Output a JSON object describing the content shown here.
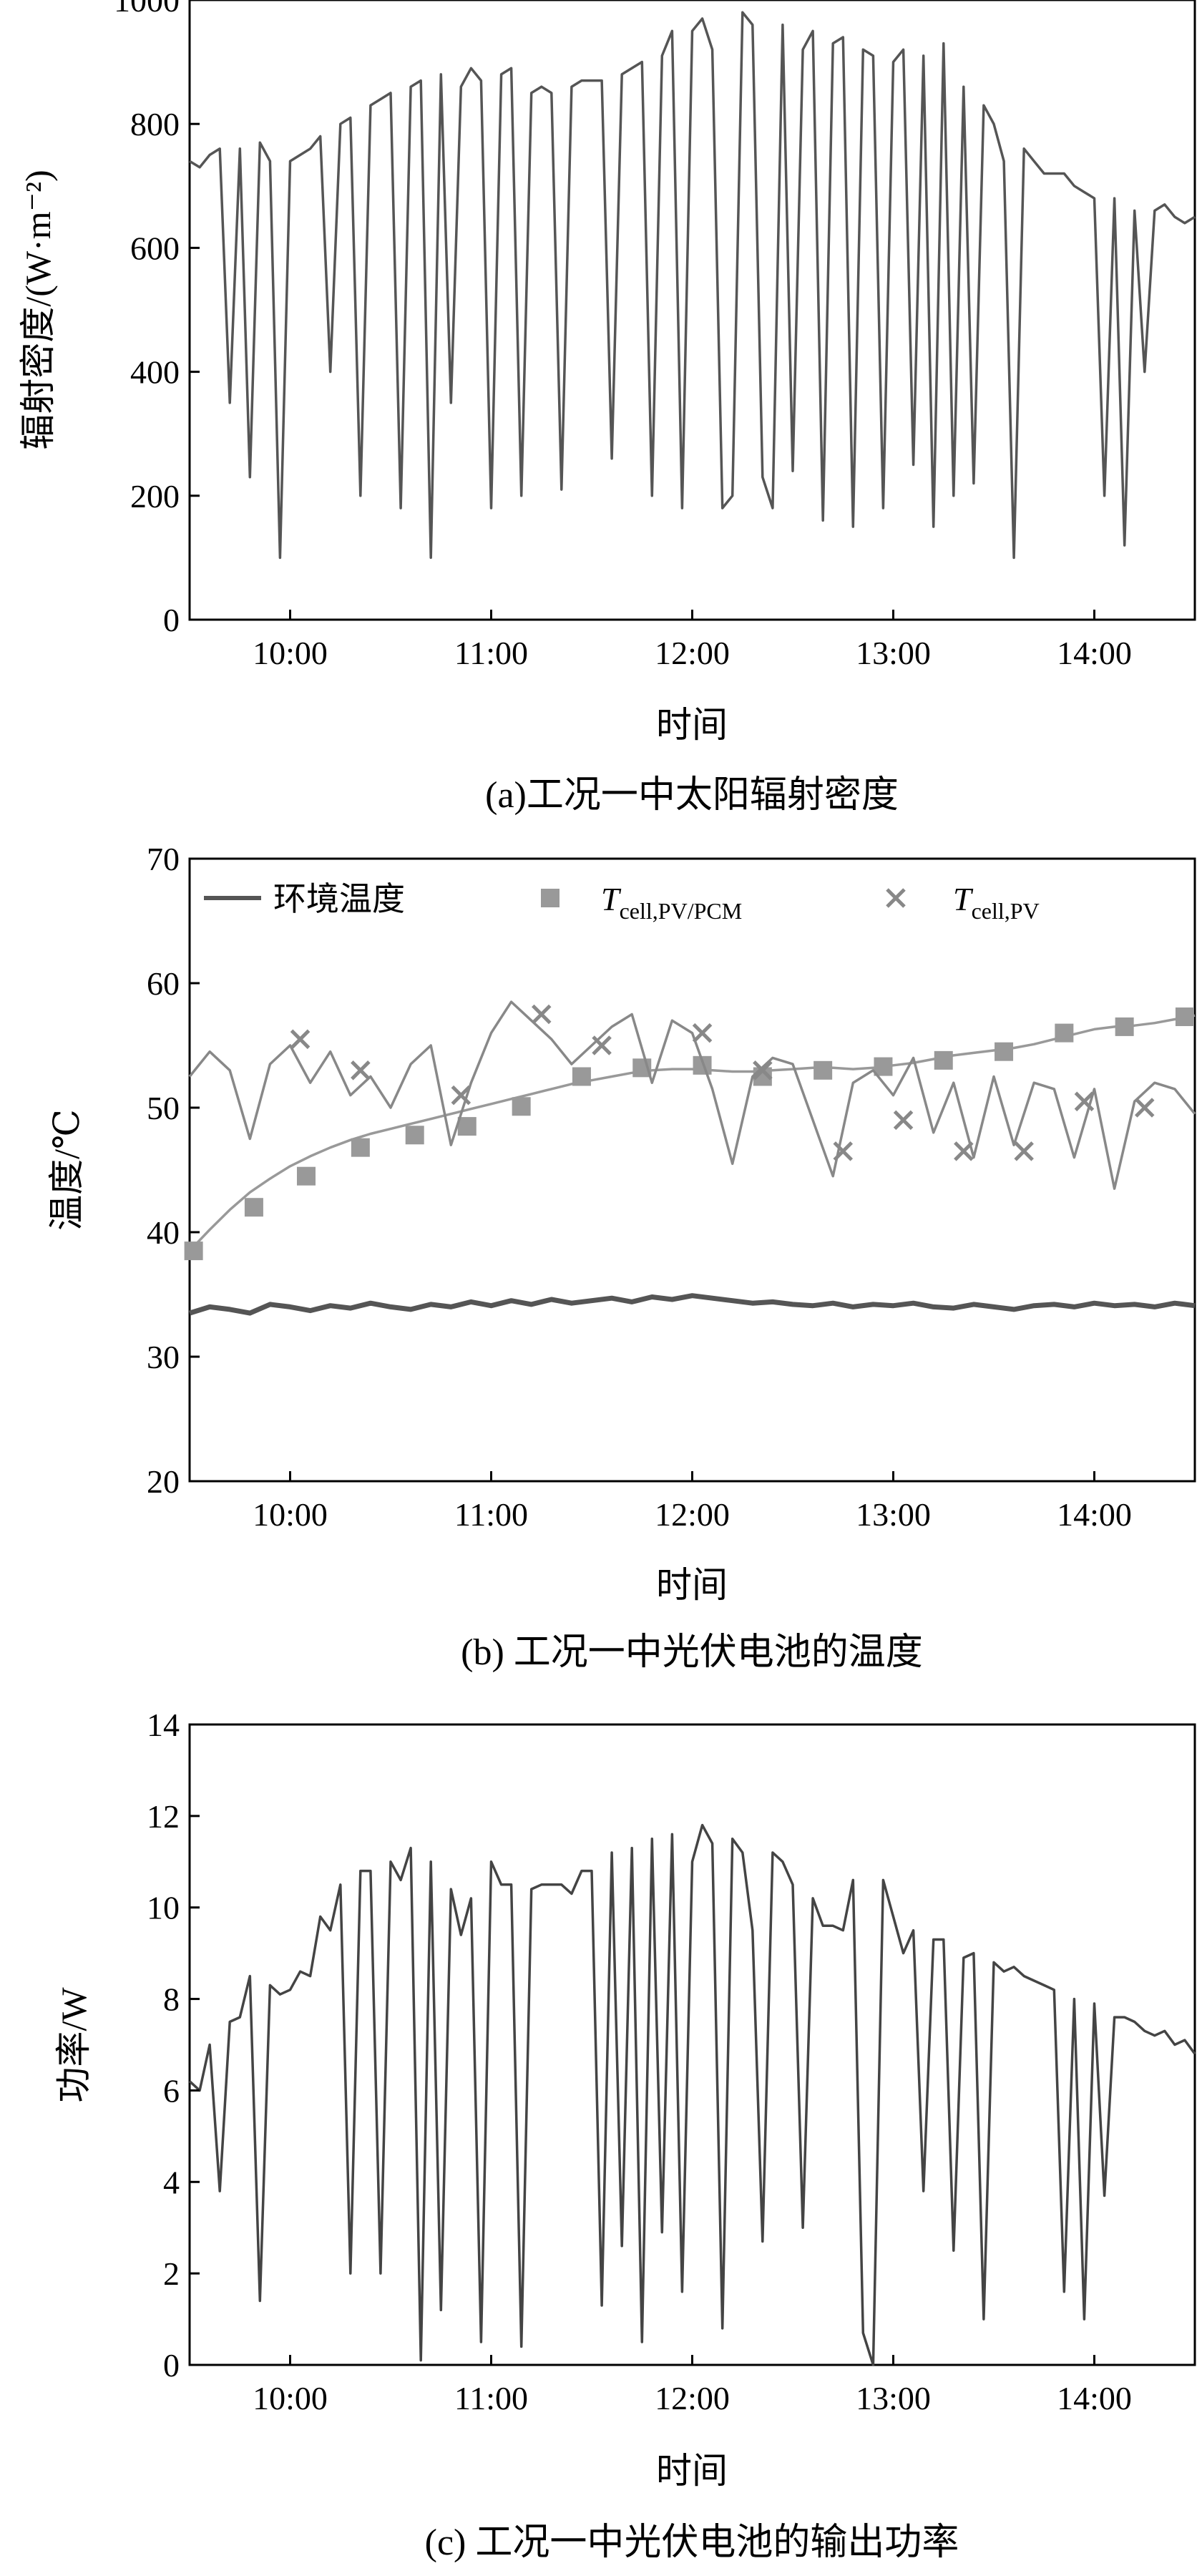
{
  "chart_data": [
    {
      "type": "line",
      "caption": "(a)工况一中太阳辐射密度",
      "xlabel": "时间",
      "ylabel": "辐射密度/(W·m⁻²)",
      "xlim": [
        9.5,
        14.5
      ],
      "ylim": [
        0,
        1000
      ],
      "yticks": [
        0,
        200,
        400,
        600,
        800,
        1000
      ],
      "xticks": [
        "10:00",
        "11:00",
        "12:00",
        "13:00",
        "14:00"
      ],
      "grid": false,
      "color": "#555555",
      "series": [
        {
          "x": [
            9.5,
            9.55,
            9.6,
            9.65,
            9.7,
            9.75,
            9.8,
            9.85,
            9.9,
            9.95,
            10.0,
            10.05,
            10.1,
            10.15,
            10.2,
            10.25,
            10.3,
            10.35,
            10.4,
            10.45,
            10.5,
            10.55,
            10.6,
            10.65,
            10.7,
            10.75,
            10.8,
            10.85,
            10.9,
            10.95,
            11.0,
            11.05,
            11.1,
            11.15,
            11.2,
            11.25,
            11.3,
            11.35,
            11.4,
            11.45,
            11.5,
            11.55,
            11.6,
            11.65,
            11.7,
            11.75,
            11.8,
            11.85,
            11.9,
            11.95,
            12.0,
            12.05,
            12.1,
            12.15,
            12.2,
            12.25,
            12.3,
            12.35,
            12.4,
            12.45,
            12.5,
            12.55,
            12.6,
            12.65,
            12.7,
            12.75,
            12.8,
            12.85,
            12.9,
            12.95,
            13.0,
            13.05,
            13.1,
            13.15,
            13.2,
            13.25,
            13.3,
            13.35,
            13.4,
            13.45,
            13.5,
            13.55,
            13.6,
            13.65,
            13.7,
            13.75,
            13.8,
            13.85,
            13.9,
            13.95,
            14.0,
            14.05,
            14.1,
            14.15,
            14.2,
            14.25,
            14.3,
            14.35,
            14.4,
            14.45,
            14.5
          ],
          "values": [
            740,
            730,
            750,
            760,
            350,
            760,
            230,
            770,
            740,
            100,
            740,
            750,
            760,
            780,
            400,
            800,
            810,
            200,
            830,
            840,
            850,
            180,
            860,
            870,
            100,
            880,
            350,
            860,
            890,
            870,
            180,
            880,
            890,
            200,
            850,
            860,
            850,
            210,
            860,
            870,
            870,
            870,
            260,
            880,
            890,
            900,
            200,
            910,
            950,
            180,
            950,
            970,
            920,
            180,
            200,
            980,
            960,
            230,
            180,
            960,
            240,
            920,
            950,
            160,
            930,
            940,
            150,
            920,
            910,
            180,
            900,
            920,
            250,
            910,
            150,
            930,
            200,
            860,
            220,
            830,
            800,
            740,
            100,
            760,
            740,
            720,
            720,
            720,
            700,
            690,
            680,
            200,
            680,
            120,
            660,
            400,
            660,
            670,
            650,
            640,
            650
          ]
        }
      ]
    },
    {
      "type": "line",
      "caption": "(b) 工况一中光伏电池的温度",
      "xlabel": "时间",
      "ylabel": "温度/℃",
      "xlim": [
        9.5,
        14.5
      ],
      "ylim": [
        20,
        70
      ],
      "yticks": [
        20,
        30,
        40,
        50,
        60,
        70
      ],
      "xticks": [
        "10:00",
        "11:00",
        "12:00",
        "13:00",
        "14:00"
      ],
      "grid": false,
      "legend": "top",
      "series": [
        {
          "name": "环境温度",
          "color": "#555555",
          "x": [
            9.5,
            9.6,
            9.7,
            9.8,
            9.9,
            10.0,
            10.1,
            10.2,
            10.3,
            10.4,
            10.5,
            10.6,
            10.7,
            10.8,
            10.9,
            11.0,
            11.1,
            11.2,
            11.3,
            11.4,
            11.5,
            11.6,
            11.7,
            11.8,
            11.9,
            12.0,
            12.1,
            12.2,
            12.3,
            12.4,
            12.5,
            12.6,
            12.7,
            12.8,
            12.9,
            13.0,
            13.1,
            13.2,
            13.3,
            13.4,
            13.5,
            13.6,
            13.7,
            13.8,
            13.9,
            14.0,
            14.1,
            14.2,
            14.3,
            14.4,
            14.5
          ],
          "values": [
            33.5,
            34.0,
            33.8,
            33.5,
            34.2,
            34.0,
            33.7,
            34.1,
            33.9,
            34.3,
            34.0,
            33.8,
            34.2,
            34.0,
            34.4,
            34.1,
            34.5,
            34.2,
            34.6,
            34.3,
            34.5,
            34.7,
            34.4,
            34.8,
            34.6,
            34.9,
            34.7,
            34.5,
            34.3,
            34.4,
            34.2,
            34.1,
            34.3,
            34.0,
            34.2,
            34.1,
            34.3,
            34.0,
            33.9,
            34.2,
            34.0,
            33.8,
            34.1,
            34.2,
            34.0,
            34.3,
            34.1,
            34.2,
            34.0,
            34.3,
            34.1
          ]
        },
        {
          "name": "T",
          "name_sub": "cell,PV/PCM",
          "color": "#999999",
          "marker": "square",
          "x": [
            9.5,
            9.6,
            9.7,
            9.8,
            9.9,
            10.0,
            10.1,
            10.2,
            10.3,
            10.4,
            10.5,
            10.6,
            10.7,
            10.8,
            10.9,
            11.0,
            11.1,
            11.2,
            11.3,
            11.4,
            11.5,
            11.6,
            11.7,
            11.8,
            11.9,
            12.0,
            12.1,
            12.2,
            12.3,
            12.4,
            12.5,
            12.6,
            12.7,
            12.8,
            12.9,
            13.0,
            13.1,
            13.2,
            13.3,
            13.4,
            13.5,
            13.6,
            13.7,
            13.8,
            13.9,
            14.0,
            14.1,
            14.2,
            14.3,
            14.4,
            14.5
          ],
          "values": [
            38.5,
            40.2,
            41.8,
            43.2,
            44.3,
            45.3,
            46.1,
            46.8,
            47.4,
            47.9,
            48.3,
            48.7,
            49.1,
            49.5,
            49.9,
            50.3,
            50.7,
            51.1,
            51.5,
            51.9,
            52.2,
            52.5,
            52.8,
            53.0,
            53.1,
            53.1,
            53.0,
            52.9,
            52.9,
            53.0,
            53.1,
            53.2,
            53.2,
            53.1,
            53.2,
            53.4,
            53.6,
            53.9,
            54.2,
            54.4,
            54.6,
            54.8,
            55.1,
            55.5,
            55.9,
            56.3,
            56.5,
            56.6,
            56.8,
            57.1,
            57.4
          ],
          "markers_x": [
            9.52,
            9.82,
            10.08,
            10.35,
            10.62,
            10.88,
            11.15,
            11.45,
            11.75,
            12.05,
            12.35,
            12.65,
            12.95,
            13.25,
            13.55,
            13.85,
            14.15,
            14.45
          ],
          "markers_y": [
            38.5,
            42.0,
            44.5,
            46.8,
            47.8,
            48.5,
            50.1,
            52.5,
            53.2,
            53.4,
            52.5,
            53.0,
            53.3,
            53.8,
            54.5,
            56.0,
            56.5,
            57.3
          ]
        },
        {
          "name": "T",
          "name_sub": "cell,PV",
          "color": "#888888",
          "marker": "x",
          "x": [
            9.5,
            9.6,
            9.7,
            9.8,
            9.9,
            10.0,
            10.1,
            10.2,
            10.3,
            10.4,
            10.5,
            10.6,
            10.7,
            10.8,
            10.9,
            11.0,
            11.1,
            11.2,
            11.3,
            11.4,
            11.5,
            11.6,
            11.7,
            11.8,
            11.9,
            12.0,
            12.1,
            12.2,
            12.3,
            12.4,
            12.5,
            12.6,
            12.7,
            12.8,
            12.9,
            13.0,
            13.1,
            13.2,
            13.3,
            13.4,
            13.5,
            13.6,
            13.7,
            13.8,
            13.9,
            14.0,
            14.1,
            14.2,
            14.3,
            14.4,
            14.5
          ],
          "values": [
            52.5,
            54.5,
            53.0,
            47.5,
            53.5,
            55.0,
            52.0,
            54.5,
            51.0,
            52.5,
            50.0,
            53.5,
            55.0,
            47.0,
            52.0,
            56.0,
            58.5,
            57.0,
            55.5,
            53.5,
            55.0,
            56.5,
            57.5,
            52.0,
            57.0,
            56.0,
            51.5,
            45.5,
            52.5,
            54.0,
            53.5,
            49.0,
            44.5,
            52.0,
            53.0,
            51.0,
            54.0,
            48.0,
            52.0,
            46.0,
            52.5,
            47.0,
            52.0,
            51.5,
            46.0,
            51.5,
            43.5,
            50.5,
            52.0,
            51.5,
            49.5
          ],
          "markers_x": [
            10.05,
            10.35,
            10.85,
            11.25,
            11.55,
            12.05,
            12.35,
            12.75,
            13.05,
            13.35,
            13.65,
            13.95,
            14.25
          ],
          "markers_y": [
            55.5,
            53.0,
            51.0,
            57.5,
            55.0,
            56.0,
            53.0,
            46.5,
            49.0,
            46.5,
            46.5,
            50.5,
            50.0
          ]
        }
      ]
    },
    {
      "type": "line",
      "caption": "(c) 工况一中光伏电池的输出功率",
      "xlabel": "时间",
      "ylabel": "功率/W",
      "xlim": [
        9.5,
        14.5
      ],
      "ylim": [
        0,
        14
      ],
      "yticks": [
        0,
        2,
        4,
        6,
        8,
        10,
        12,
        14
      ],
      "xticks": [
        "10:00",
        "11:00",
        "12:00",
        "13:00",
        "14:00"
      ],
      "grid": false,
      "color": "#444444",
      "series": [
        {
          "x": [
            9.5,
            9.55,
            9.6,
            9.65,
            9.7,
            9.75,
            9.8,
            9.85,
            9.9,
            9.95,
            10.0,
            10.05,
            10.1,
            10.15,
            10.2,
            10.25,
            10.3,
            10.35,
            10.4,
            10.45,
            10.5,
            10.55,
            10.6,
            10.65,
            10.7,
            10.75,
            10.8,
            10.85,
            10.9,
            10.95,
            11.0,
            11.05,
            11.1,
            11.15,
            11.2,
            11.25,
            11.3,
            11.35,
            11.4,
            11.45,
            11.5,
            11.55,
            11.6,
            11.65,
            11.7,
            11.75,
            11.8,
            11.85,
            11.9,
            11.95,
            12.0,
            12.05,
            12.1,
            12.15,
            12.2,
            12.25,
            12.3,
            12.35,
            12.4,
            12.45,
            12.5,
            12.55,
            12.6,
            12.65,
            12.7,
            12.75,
            12.8,
            12.85,
            12.9,
            12.95,
            13.0,
            13.05,
            13.1,
            13.15,
            13.2,
            13.25,
            13.3,
            13.35,
            13.4,
            13.45,
            13.5,
            13.55,
            13.6,
            13.65,
            13.7,
            13.75,
            13.8,
            13.85,
            13.9,
            13.95,
            14.0,
            14.05,
            14.1,
            14.15,
            14.2,
            14.25,
            14.3,
            14.35,
            14.4,
            14.45,
            14.5
          ],
          "values": [
            6.2,
            6.0,
            7.0,
            3.8,
            7.5,
            7.6,
            8.5,
            1.4,
            8.3,
            8.1,
            8.2,
            8.6,
            8.5,
            9.8,
            9.5,
            10.5,
            2.0,
            10.8,
            10.8,
            2.0,
            11.0,
            10.6,
            11.3,
            0.1,
            11.0,
            1.2,
            10.4,
            9.4,
            10.2,
            0.5,
            11.0,
            10.5,
            10.5,
            0.4,
            10.4,
            10.5,
            10.5,
            10.5,
            10.3,
            10.8,
            10.8,
            1.3,
            11.2,
            2.6,
            11.3,
            0.5,
            11.5,
            2.9,
            11.6,
            1.6,
            11.0,
            11.8,
            11.4,
            0.8,
            11.5,
            11.2,
            9.5,
            2.7,
            11.2,
            11.0,
            10.5,
            3.0,
            10.2,
            9.6,
            9.6,
            9.5,
            10.6,
            0.7,
            0.0,
            10.6,
            9.8,
            9.0,
            9.5,
            3.8,
            9.3,
            9.3,
            2.5,
            8.9,
            9.0,
            1.0,
            8.8,
            8.6,
            8.7,
            8.5,
            8.4,
            8.3,
            8.2,
            1.6,
            8.0,
            1.0,
            7.9,
            3.7,
            7.6,
            7.6,
            7.5,
            7.3,
            7.2,
            7.3,
            7.0,
            7.1,
            6.8
          ]
        }
      ]
    }
  ]
}
